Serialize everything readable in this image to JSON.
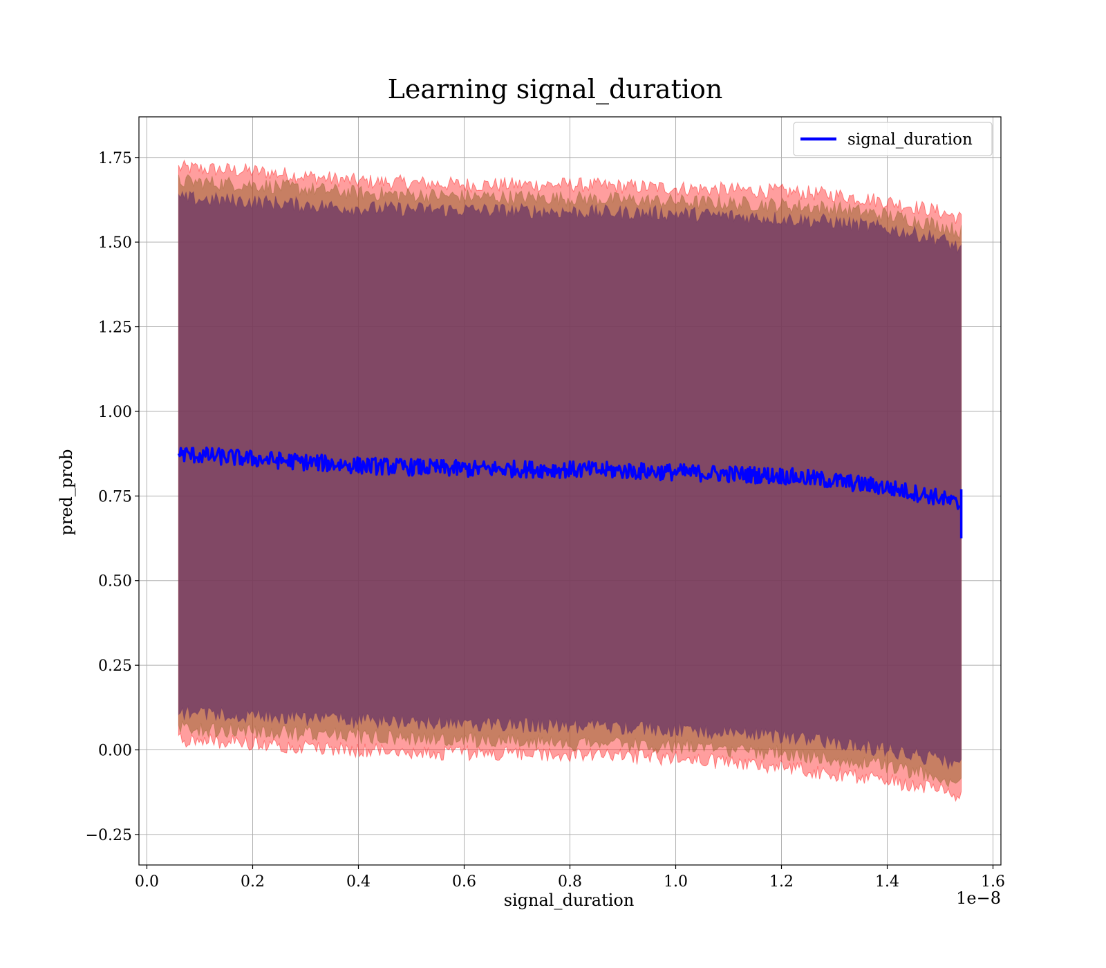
{
  "chart_data": {
    "type": "line",
    "title": "Learning signal_duration",
    "xlabel": "signal_duration",
    "ylabel": "pred_prob",
    "x_offset_label": "1e−8",
    "xlim": [
      -0.015,
      1.615
    ],
    "ylim": [
      -0.34,
      1.87
    ],
    "x_ticks": [
      0.0,
      0.2,
      0.4,
      0.6,
      0.8,
      1.0,
      1.2,
      1.4,
      1.6
    ],
    "x_tick_labels": [
      "0.0",
      "0.2",
      "0.4",
      "0.6",
      "0.8",
      "1.0",
      "1.2",
      "1.4",
      "1.6"
    ],
    "y_ticks": [
      -0.25,
      0.0,
      0.25,
      0.5,
      0.75,
      1.0,
      1.25,
      1.5,
      1.75
    ],
    "y_tick_labels": [
      "−0.25",
      "0.00",
      "0.25",
      "0.50",
      "0.75",
      "1.00",
      "1.25",
      "1.50",
      "1.75"
    ],
    "grid": true,
    "legend_position": "top-right",
    "series": [
      {
        "name": "signal_duration",
        "color": "#0000ff",
        "x": [
          0.06,
          0.1,
          0.2,
          0.3,
          0.4,
          0.5,
          0.6,
          0.7,
          0.8,
          0.9,
          1.0,
          1.1,
          1.2,
          1.3,
          1.4,
          1.5,
          1.54
        ],
        "y": [
          0.875,
          0.87,
          0.86,
          0.85,
          0.84,
          0.835,
          0.83,
          0.83,
          0.828,
          0.825,
          0.82,
          0.815,
          0.81,
          0.795,
          0.775,
          0.745,
          0.72
        ]
      }
    ],
    "bands": [
      {
        "color": "#ff0000",
        "opacity": 0.38,
        "x": [
          0.06,
          0.2,
          0.4,
          0.6,
          0.8,
          1.0,
          1.2,
          1.3,
          1.4,
          1.5,
          1.54
        ],
        "upper": [
          1.72,
          1.71,
          1.68,
          1.67,
          1.67,
          1.66,
          1.65,
          1.64,
          1.62,
          1.59,
          1.57
        ],
        "lower": [
          0.03,
          0.02,
          0.0,
          -0.01,
          -0.015,
          -0.025,
          -0.05,
          -0.07,
          -0.09,
          -0.12,
          -0.14
        ]
      },
      {
        "color": "#996633",
        "opacity": 0.55,
        "x": [
          0.06,
          0.2,
          0.4,
          0.6,
          0.8,
          1.0,
          1.2,
          1.3,
          1.4,
          1.5,
          1.54
        ],
        "upper": [
          1.68,
          1.67,
          1.645,
          1.635,
          1.63,
          1.62,
          1.61,
          1.6,
          1.58,
          1.55,
          1.53
        ],
        "lower": [
          0.065,
          0.055,
          0.04,
          0.03,
          0.02,
          0.01,
          -0.01,
          -0.03,
          -0.05,
          -0.08,
          -0.1
        ]
      },
      {
        "color": "#663366",
        "opacity": 0.72,
        "x": [
          0.06,
          0.2,
          0.4,
          0.6,
          0.8,
          1.0,
          1.2,
          1.3,
          1.4,
          1.5,
          1.54
        ],
        "upper": [
          1.63,
          1.62,
          1.6,
          1.595,
          1.59,
          1.585,
          1.57,
          1.56,
          1.54,
          1.51,
          1.48
        ],
        "lower": [
          0.11,
          0.1,
          0.085,
          0.075,
          0.07,
          0.06,
          0.04,
          0.02,
          0.0,
          -0.03,
          -0.05
        ]
      }
    ]
  }
}
